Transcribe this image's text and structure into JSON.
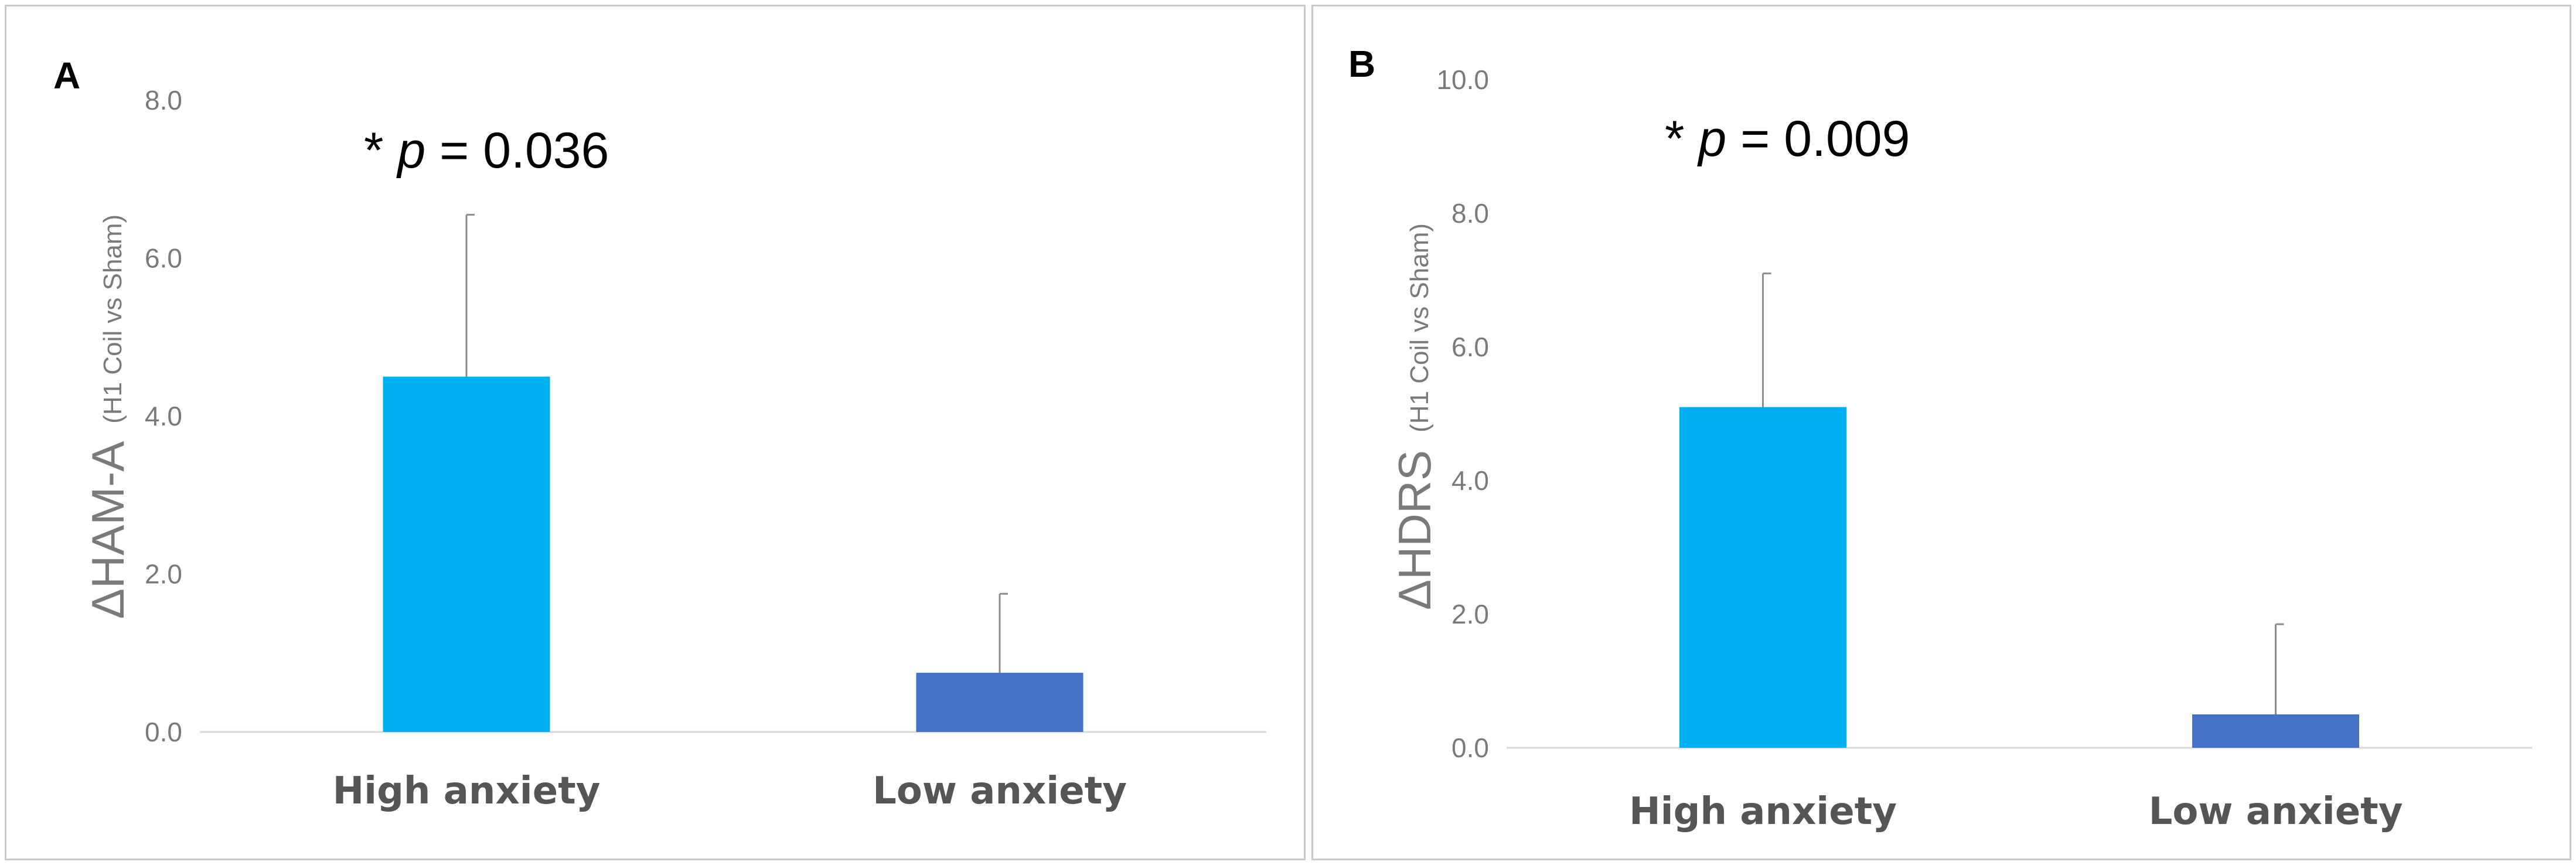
{
  "chart_data": [
    {
      "type": "bar",
      "panel_label": "A",
      "categories": [
        "High anxiety",
        "Low anxiety"
      ],
      "values": [
        4.5,
        0.75
      ],
      "error_upper": [
        2.05,
        1.0
      ],
      "colors": [
        "#00b0f0",
        "#4472c4"
      ],
      "ylabel_main": "ΔHAM-A",
      "ylabel_sub": "(H1 Coil vs Sham)",
      "ylim": [
        0,
        8
      ],
      "yticks": [
        0,
        2,
        4,
        6,
        8
      ],
      "ytick_labels": [
        "0.0",
        "2.0",
        "4.0",
        "6.0",
        "8.0"
      ],
      "annotation": {
        "prefix": "* ",
        "p": "p",
        "rest": " = 0.036"
      }
    },
    {
      "type": "bar",
      "panel_label": "B",
      "categories": [
        "High anxiety",
        "Low anxiety"
      ],
      "values": [
        5.1,
        0.5
      ],
      "error_upper": [
        2.0,
        1.35
      ],
      "colors": [
        "#00b0f0",
        "#4472c4"
      ],
      "ylabel_main": "ΔHDRS",
      "ylabel_sub": "(H1 Coil vs Sham)",
      "ylim": [
        0,
        10
      ],
      "yticks": [
        0,
        2,
        4,
        6,
        8,
        10
      ],
      "ytick_labels": [
        "0.0",
        "2.0",
        "4.0",
        "6.0",
        "8.0",
        "10.0"
      ],
      "annotation": {
        "prefix": "* ",
        "p": "p",
        "rest": " = 0.009"
      }
    }
  ]
}
